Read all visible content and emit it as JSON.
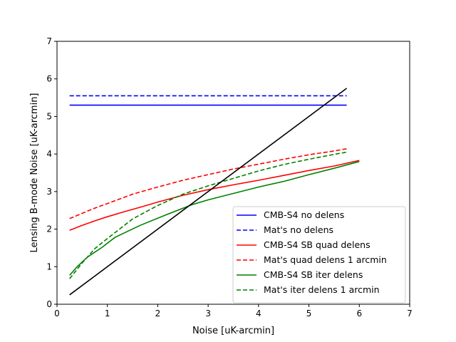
{
  "chart_data": {
    "type": "line",
    "title": "",
    "xlabel": "Noise [uK-arcmin]",
    "ylabel": "Lensing B-mode Noise [uK-arcmin]",
    "xlim": [
      0,
      7
    ],
    "ylim": [
      0,
      7
    ],
    "xticks": [
      "0",
      "1",
      "2",
      "3",
      "4",
      "5",
      "6",
      "7"
    ],
    "yticks": [
      "0",
      "1",
      "2",
      "3",
      "4",
      "5",
      "6",
      "7"
    ],
    "grid": false,
    "legend_position": "lower-right",
    "series": [
      {
        "name": "CMB-S4 no delens",
        "color": "#0000ff",
        "dash": "solid",
        "x": [
          0.25,
          5.75
        ],
        "y": [
          5.3,
          5.3
        ]
      },
      {
        "name": "Mat's no delens",
        "color": "#0000ff",
        "dash": "dashed",
        "x": [
          0.25,
          5.75
        ],
        "y": [
          5.55,
          5.55
        ]
      },
      {
        "name": "CMB-S4 SB quad delens",
        "color": "#ff0000",
        "dash": "solid",
        "x": [
          0.25,
          0.5,
          0.75,
          1.0,
          1.3,
          1.7,
          2.0,
          2.5,
          3.0,
          3.5,
          4.0,
          4.5,
          5.0,
          5.5,
          6.0
        ],
        "y": [
          1.97,
          2.1,
          2.22,
          2.33,
          2.45,
          2.6,
          2.72,
          2.9,
          3.05,
          3.18,
          3.3,
          3.43,
          3.56,
          3.68,
          3.83
        ]
      },
      {
        "name": "Mat's quad delens 1 arcmin",
        "color": "#ff0000",
        "dash": "dashed",
        "x": [
          0.25,
          0.5,
          0.75,
          1.0,
          1.5,
          2.0,
          2.5,
          3.0,
          3.5,
          4.0,
          4.5,
          5.0,
          5.5,
          5.75
        ],
        "y": [
          2.28,
          2.42,
          2.56,
          2.68,
          2.93,
          3.12,
          3.3,
          3.45,
          3.6,
          3.73,
          3.86,
          3.98,
          4.08,
          4.14
        ]
      },
      {
        "name": "CMB-S4 SB iter delens",
        "color": "#008000",
        "dash": "solid",
        "x": [
          0.25,
          0.4,
          0.6,
          0.9,
          1.15,
          1.65,
          2.2,
          2.7,
          3.0,
          3.5,
          4.0,
          4.5,
          5.0,
          5.5,
          6.0
        ],
        "y": [
          0.77,
          1.0,
          1.25,
          1.52,
          1.78,
          2.1,
          2.4,
          2.66,
          2.78,
          2.95,
          3.12,
          3.27,
          3.45,
          3.62,
          3.8
        ]
      },
      {
        "name": "Mat's iter delens 1 arcmin",
        "color": "#008000",
        "dash": "dashed",
        "x": [
          0.25,
          0.5,
          0.75,
          1.0,
          1.5,
          2.0,
          2.5,
          3.0,
          3.5,
          4.0,
          4.5,
          5.0,
          5.5,
          5.75
        ],
        "y": [
          0.68,
          1.1,
          1.48,
          1.75,
          2.27,
          2.63,
          2.93,
          3.15,
          3.35,
          3.55,
          3.72,
          3.86,
          3.99,
          4.05
        ]
      },
      {
        "name": "",
        "color": "#000000",
        "dash": "solid",
        "x": [
          0.25,
          5.75
        ],
        "y": [
          0.25,
          5.75
        ]
      }
    ]
  }
}
